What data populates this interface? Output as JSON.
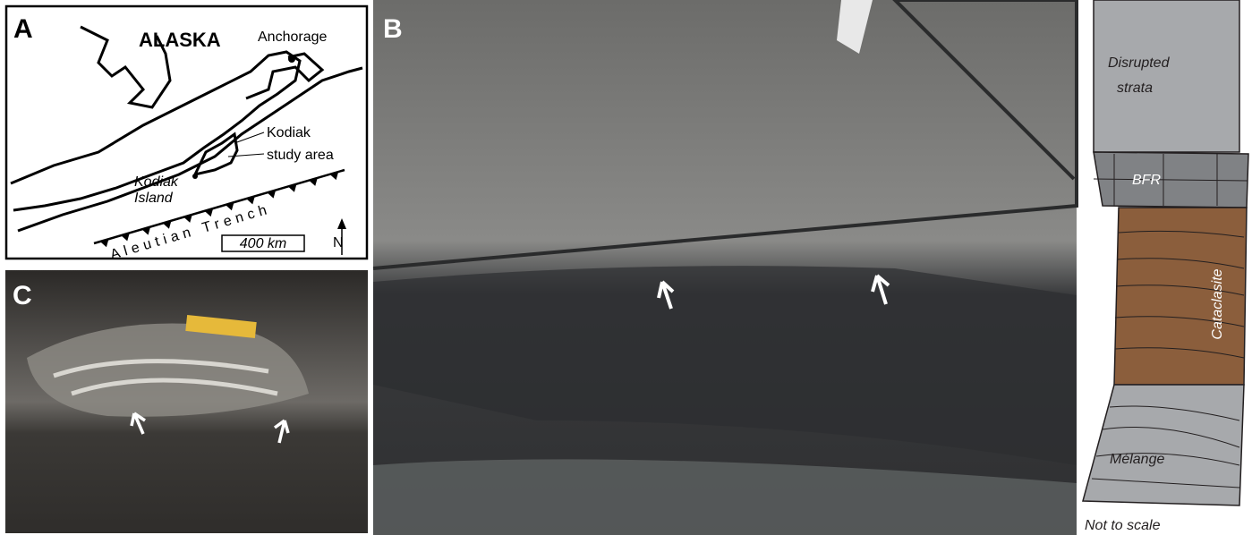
{
  "panels": {
    "a": {
      "label": "A",
      "title": "ALASKA",
      "city": "Anchorage",
      "town": "Kodiak",
      "area": "study area",
      "island": [
        "Kodiak",
        "Island"
      ],
      "trench": "Aleutian Trench",
      "scale_bar": "400 km",
      "north": "N"
    },
    "b": {
      "label": "B"
    },
    "c": {
      "label": "C"
    },
    "column": {
      "top": [
        "Disrupted",
        "strata"
      ],
      "band": "BFR",
      "middle": "Cataclasite",
      "bottom": "Mélange",
      "note": "Not to scale"
    }
  }
}
